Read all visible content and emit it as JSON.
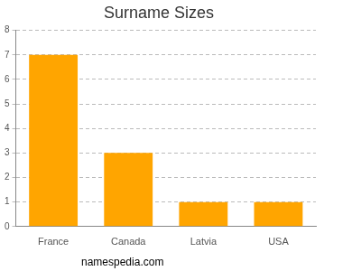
{
  "chart_data": {
    "type": "bar",
    "title": "Surname Sizes",
    "categories": [
      "France",
      "Canada",
      "Latvia",
      "USA"
    ],
    "values": [
      7,
      3,
      1,
      1
    ],
    "color": "#ffa500",
    "ylim": [
      0,
      8
    ],
    "yticks": [
      0,
      1,
      2,
      3,
      4,
      5,
      6,
      7,
      8
    ],
    "grid": true,
    "annotations": [
      "namespedia.com"
    ]
  }
}
